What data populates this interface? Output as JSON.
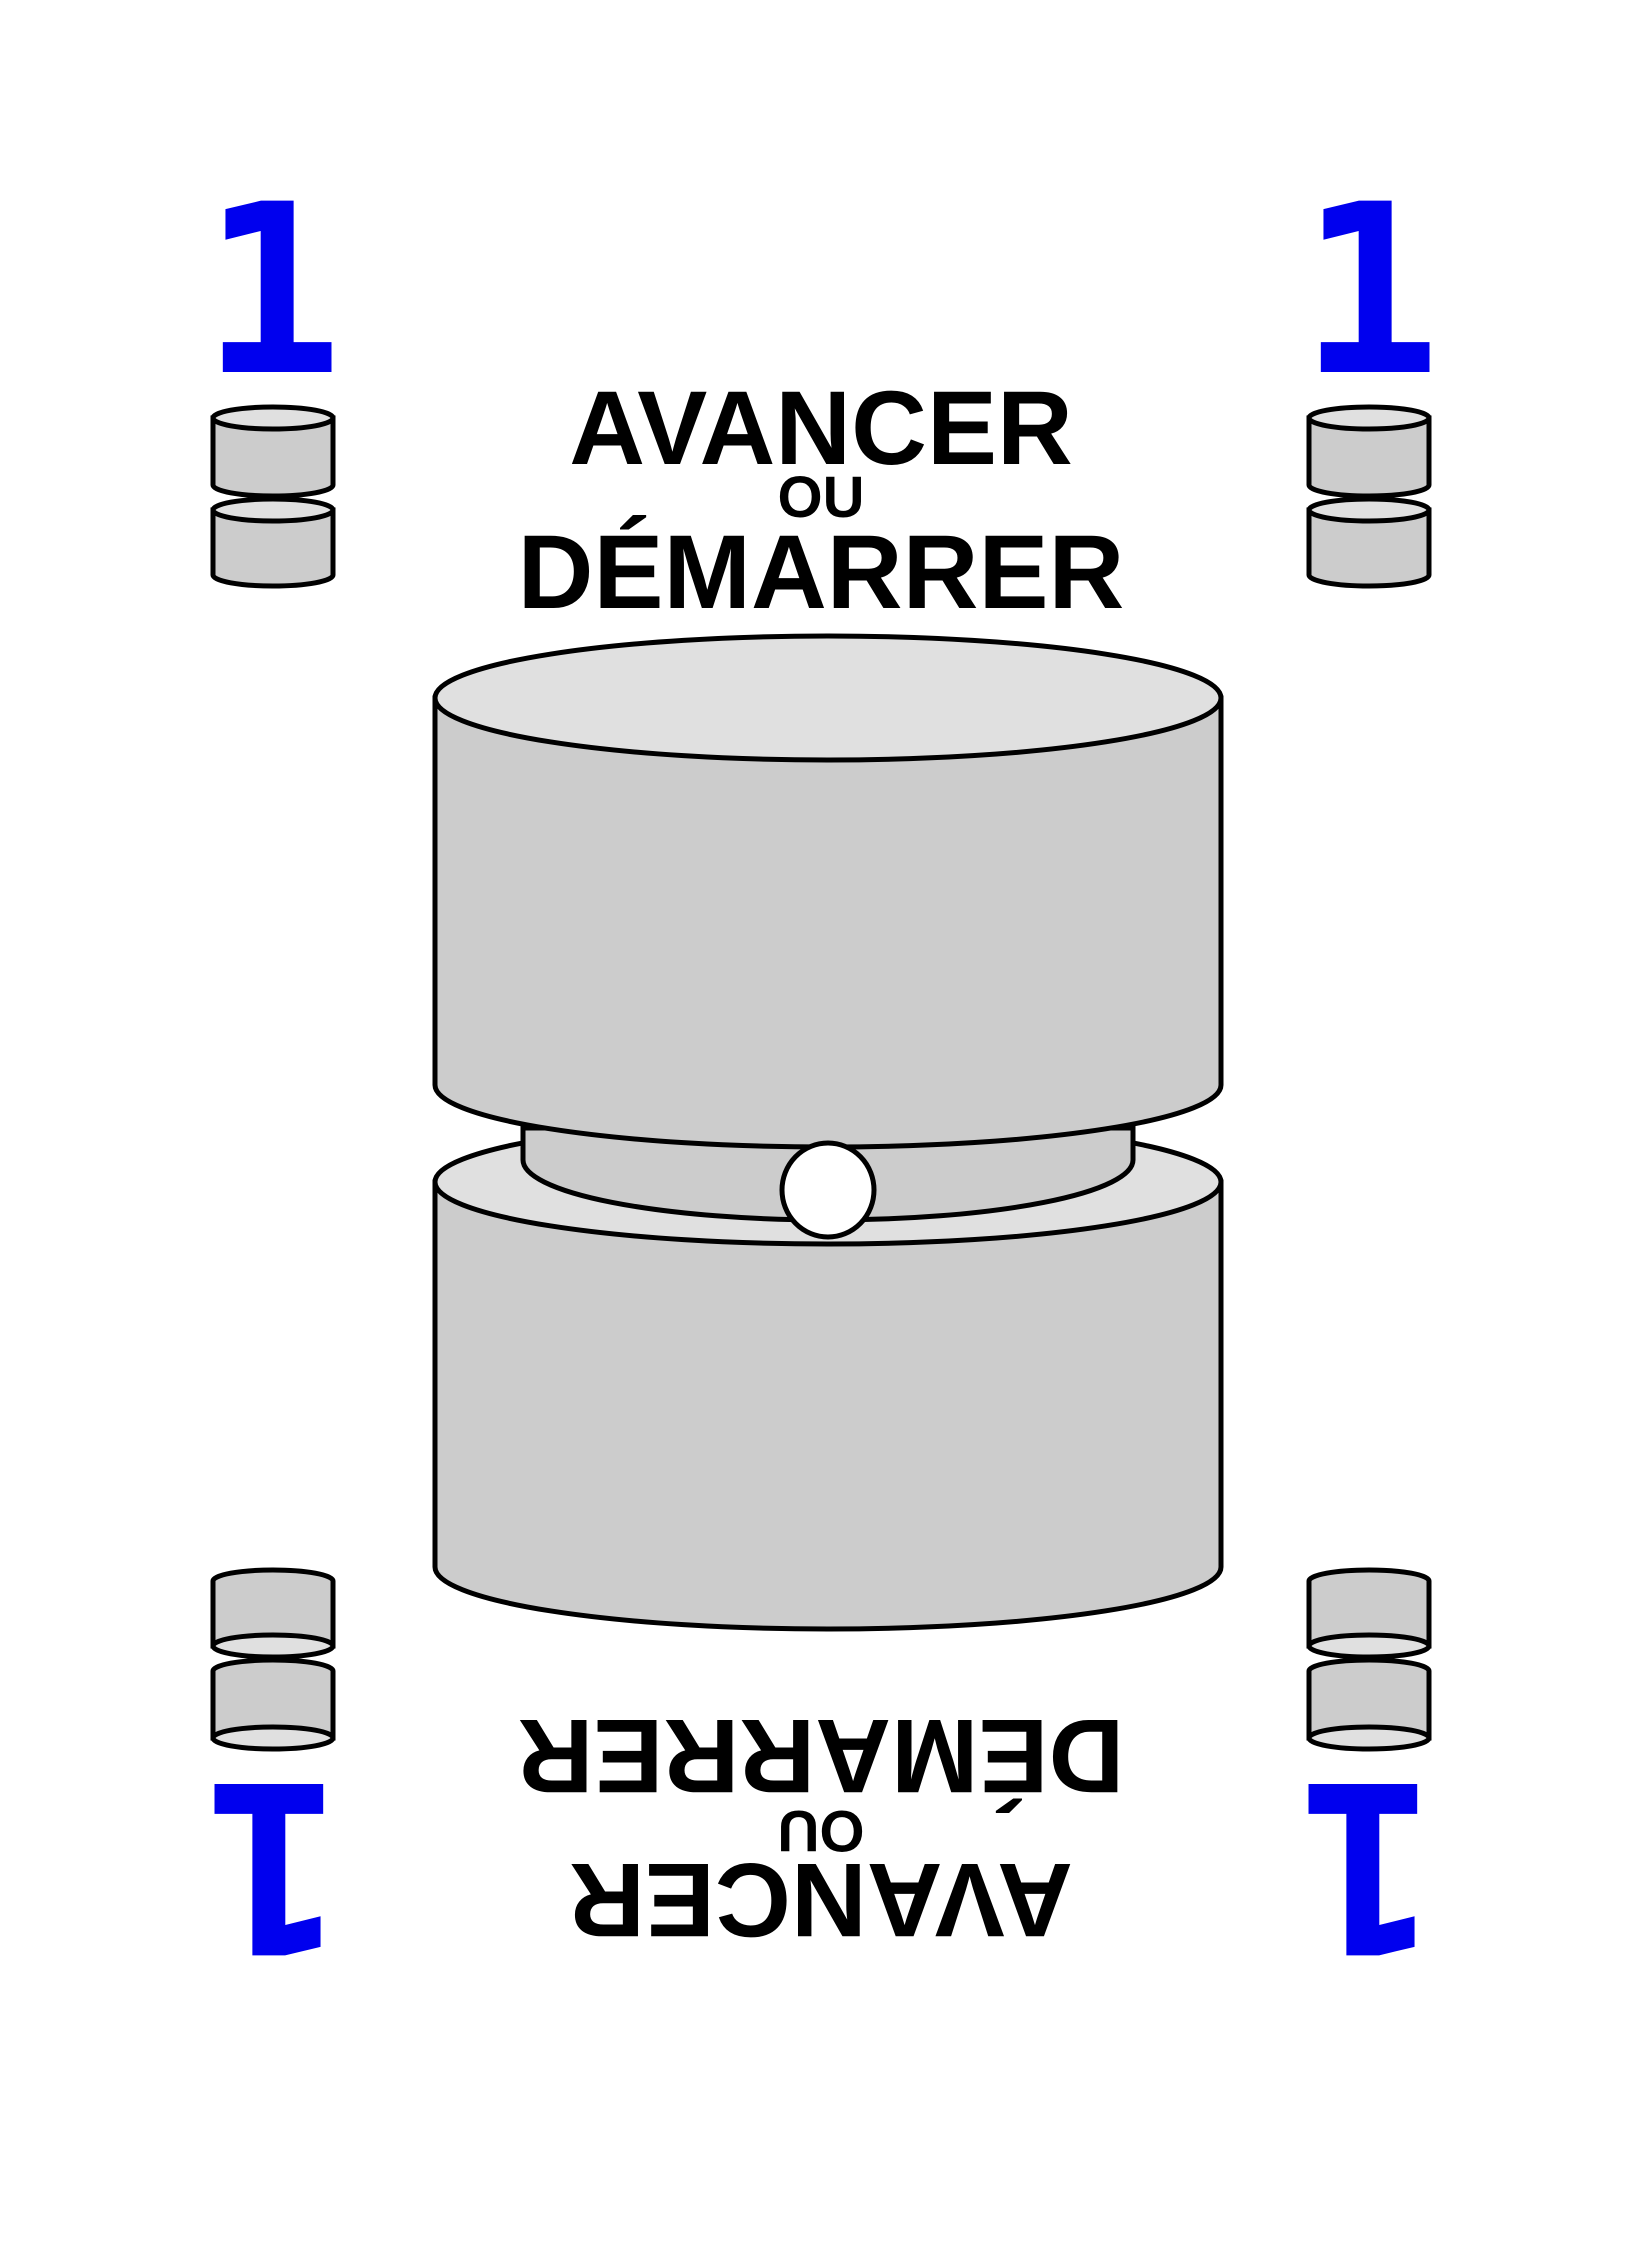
{
  "card": {
    "corner_value": "1",
    "title_line1": "AVANCER",
    "title_connector": "OU",
    "title_line2": "DÉMARRER"
  },
  "colors": {
    "corner_number": "#0000ee",
    "cylinder_side": "#cccccc",
    "cylinder_top": "#e0e0e0",
    "outline": "#000000",
    "peg": "#ffffff",
    "background": "#ffffff",
    "text": "#000000"
  },
  "icons": {
    "corner_stack": "stacked-disc-icon",
    "center_object": "stacked-cylinder-icon"
  }
}
